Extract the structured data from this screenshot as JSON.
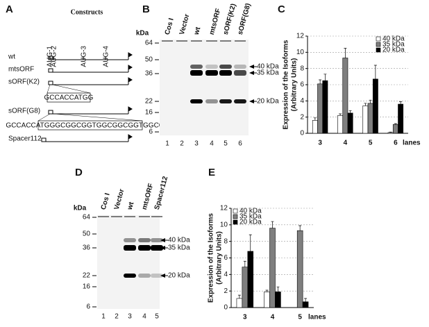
{
  "constructs": {
    "label": "A",
    "title": "Constructs",
    "rows": [
      "wt",
      "mtsORF",
      "sORF(K2)",
      "sORF(G8)",
      "Spacer112"
    ],
    "aug_labels": [
      "AUG-1",
      "AUG-2",
      "AUG-3",
      "AUG-4"
    ],
    "sequences": [
      "GCCACCATGG",
      "GCCACCATGGGCGGCGGTGGCGGCGGTGGCGGC"
    ]
  },
  "blots": [
    {
      "label": "B",
      "unit": "kDa",
      "lanes": [
        "Cos I",
        "Vector",
        "wt",
        "mtsORF",
        "sORF(K2)",
        "sORF(G8)"
      ],
      "lane_numbers": [
        "1",
        "2",
        "3",
        "4",
        "5",
        "6"
      ],
      "markers": [
        "64",
        "50",
        "36",
        "22",
        "16",
        "6"
      ],
      "bands": [
        "40 kDa",
        "35 kDa",
        "20 kDa"
      ]
    },
    {
      "label": "D",
      "unit": "kDa",
      "lanes": [
        "Cos I",
        "Vector",
        "wt",
        "mtsORF",
        "Spacer112"
      ],
      "lane_numbers": [
        "1",
        "2",
        "3",
        "4",
        "5"
      ],
      "markers": [
        "64",
        "50",
        "36",
        "22",
        "16",
        "6"
      ],
      "bands": [
        "40 kDa",
        "35 kDa",
        "20 kDa"
      ]
    }
  ],
  "chart_data": [
    {
      "type": "bar",
      "label": "C",
      "ylabel": [
        "Expression of the Isoforms",
        "(Arbitrary Units)"
      ],
      "xlabel": "lanes",
      "categories": [
        "3",
        "4",
        "5",
        "6"
      ],
      "series": [
        {
          "name": "40 kDa",
          "color": "#ffffff",
          "values": [
            1.6,
            2.2,
            3.4,
            0.1
          ],
          "errors": [
            0.3,
            0.2,
            0.3,
            0.05
          ]
        },
        {
          "name": "35 kDa",
          "color": "#7f7f7f",
          "values": [
            6.1,
            9.3,
            3.7,
            1.1
          ],
          "errors": [
            0.5,
            1.2,
            0.4,
            0.1
          ]
        },
        {
          "name": "20 kDa",
          "color": "#000000",
          "values": [
            6.5,
            2.5,
            6.7,
            3.6
          ],
          "errors": [
            0.8,
            0.3,
            1.7,
            0.3
          ]
        }
      ],
      "ylim": [
        0,
        12
      ],
      "yticks": [
        0,
        2,
        4,
        6,
        8,
        10,
        12
      ],
      "grid": true,
      "legend": "top-right"
    },
    {
      "type": "bar",
      "label": "E",
      "ylabel": [
        "Expression of the Isoforms",
        "(Arbitrary Units)"
      ],
      "xlabel": "lanes",
      "categories": [
        "3",
        "4",
        "5"
      ],
      "series": [
        {
          "name": "40 kDa",
          "color": "#ffffff",
          "values": [
            1.1,
            1.9,
            0
          ],
          "errors": [
            0.4,
            0.2,
            0
          ]
        },
        {
          "name": "35 kDa",
          "color": "#7f7f7f",
          "values": [
            4.9,
            9.6,
            9.3
          ],
          "errors": [
            0.7,
            0.8,
            0.6
          ]
        },
        {
          "name": "20 kDa",
          "color": "#000000",
          "values": [
            6.8,
            1.9,
            0.7
          ],
          "errors": [
            2.0,
            0.6,
            0.4
          ]
        }
      ],
      "ylim": [
        0,
        12
      ],
      "yticks": [
        0,
        2,
        4,
        6,
        8,
        10,
        12
      ],
      "grid": true,
      "legend": "top-left"
    }
  ]
}
